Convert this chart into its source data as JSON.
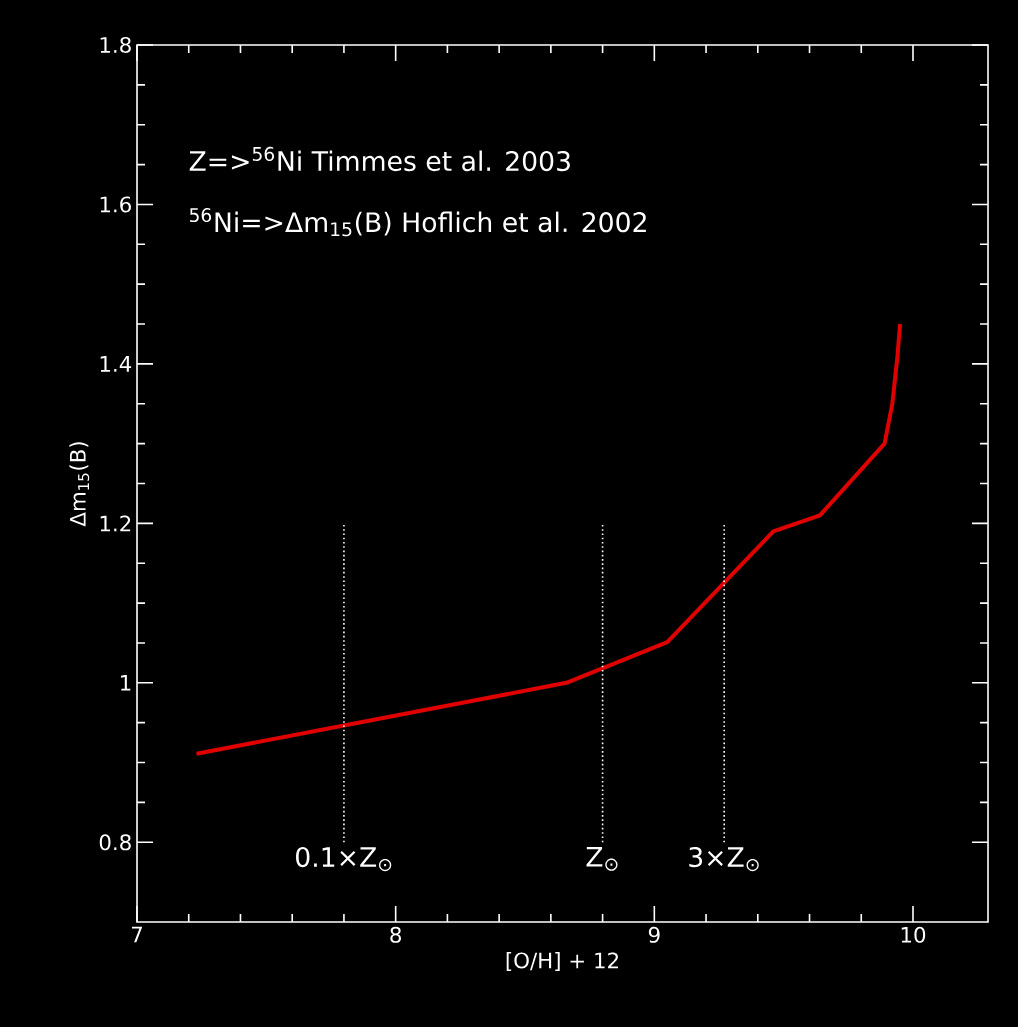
{
  "chart_data": {
    "type": "line",
    "xlabel": "[O/H] + 12",
    "ylabel": "Δm$_{15}$(B)",
    "xlim": [
      7,
      10.29
    ],
    "ylim": [
      0.7,
      1.8
    ],
    "xticks": [
      7,
      8,
      9,
      10
    ],
    "yticks": [
      0.8,
      1,
      1.2,
      1.4,
      1.6,
      1.8
    ],
    "series": [
      {
        "color": "#e00000",
        "x": [
          7.23,
          8.66,
          9.05,
          9.46,
          9.64,
          9.89,
          9.92,
          9.94,
          9.95
        ],
        "values": [
          0.911,
          1.0,
          1.051,
          1.19,
          1.21,
          1.3,
          1.35,
          1.41,
          1.45
        ]
      },
      {
        "type": "line",
        "color": "#ffffff",
        "line_style": "dotted",
        "x": [
          7.8,
          7.8
        ],
        "values": [
          0.8,
          1.2
        ]
      },
      {
        "type": "line",
        "color": "#ffffff",
        "line_style": "dotted",
        "x": [
          8.8,
          8.8
        ],
        "values": [
          0.8,
          1.2
        ]
      },
      {
        "type": "line",
        "color": "#ffffff",
        "line_style": "dotted",
        "x": [
          9.27,
          9.27
        ],
        "values": [
          0.8,
          1.2
        ]
      }
    ],
    "annotations": [
      "Z=>$^{56}$Ni Timmes et al. 2003",
      "$^{56}$Ni=>Δm$_{15}$(B) Hoflich et al. 2002",
      {
        "text": "0.1×Z$_{⊙}$",
        "x": 7.8,
        "y": 0.8
      },
      {
        "text": "Z$_{⊙}$",
        "x": 8.8,
        "y": 0.8
      },
      {
        "text": "3×Z$_{⊙}$",
        "x": 9.27,
        "y": 0.8
      }
    ]
  }
}
